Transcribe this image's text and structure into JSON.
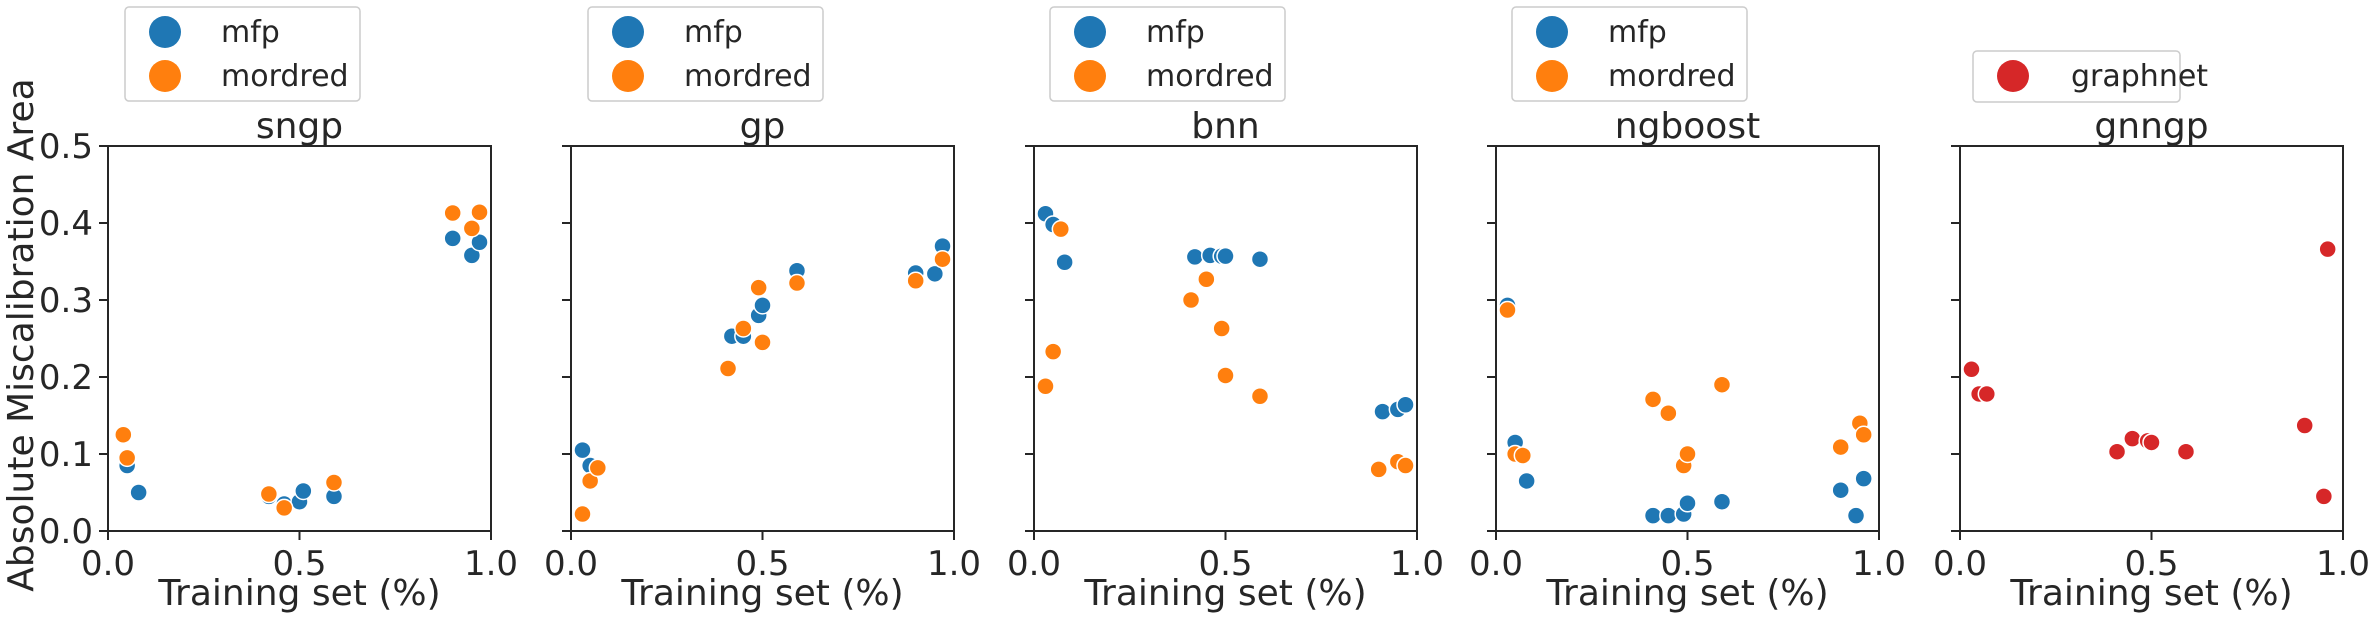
{
  "figure": {
    "ylabel": "Absolute Miscalibration Area",
    "colors": {
      "mfp": "#1f77b4",
      "mordred": "#ff7f0e",
      "graphnet": "#d62728"
    }
  },
  "chart_data": [
    {
      "type": "scatter",
      "title": "sngp",
      "xlabel": "Training set (%)",
      "ylabel": "Absolute Miscalibration Area",
      "xlim": [
        0.0,
        1.0
      ],
      "ylim": [
        0.0,
        0.5
      ],
      "xticks": [
        "0.0",
        "0.5",
        "1.0"
      ],
      "yticks": [
        "0.0",
        "0.1",
        "0.2",
        "0.3",
        "0.4",
        "0.5"
      ],
      "legend": [
        "mfp",
        "mordred"
      ],
      "series": [
        {
          "name": "mfp",
          "color": "#1f77b4",
          "points": [
            [
              0.05,
              0.085
            ],
            [
              0.08,
              0.05
            ],
            [
              0.42,
              0.045
            ],
            [
              0.46,
              0.035
            ],
            [
              0.5,
              0.038
            ],
            [
              0.51,
              0.052
            ],
            [
              0.59,
              0.045
            ],
            [
              0.9,
              0.38
            ],
            [
              0.95,
              0.358
            ],
            [
              0.97,
              0.375
            ]
          ]
        },
        {
          "name": "mordred",
          "color": "#ff7f0e",
          "points": [
            [
              0.04,
              0.125
            ],
            [
              0.05,
              0.095
            ],
            [
              0.42,
              0.048
            ],
            [
              0.46,
              0.03
            ],
            [
              0.59,
              0.063
            ],
            [
              0.9,
              0.413
            ],
            [
              0.95,
              0.393
            ],
            [
              0.97,
              0.414
            ]
          ]
        }
      ]
    },
    {
      "type": "scatter",
      "title": "gp",
      "xlabel": "Training set (%)",
      "xlim": [
        0.0,
        1.0
      ],
      "ylim": [
        0.0,
        0.5
      ],
      "xticks": [
        "0.0",
        "0.5",
        "1.0"
      ],
      "legend": [
        "mfp",
        "mordred"
      ],
      "series": [
        {
          "name": "mfp",
          "color": "#1f77b4",
          "points": [
            [
              0.03,
              0.105
            ],
            [
              0.05,
              0.085
            ],
            [
              0.42,
              0.253
            ],
            [
              0.45,
              0.253
            ],
            [
              0.49,
              0.28
            ],
            [
              0.5,
              0.293
            ],
            [
              0.59,
              0.338
            ],
            [
              0.9,
              0.335
            ],
            [
              0.95,
              0.334
            ],
            [
              0.97,
              0.37
            ]
          ]
        },
        {
          "name": "mordred",
          "color": "#ff7f0e",
          "points": [
            [
              0.03,
              0.022
            ],
            [
              0.05,
              0.065
            ],
            [
              0.07,
              0.082
            ],
            [
              0.41,
              0.211
            ],
            [
              0.45,
              0.263
            ],
            [
              0.49,
              0.316
            ],
            [
              0.5,
              0.245
            ],
            [
              0.59,
              0.322
            ],
            [
              0.9,
              0.325
            ],
            [
              0.97,
              0.353
            ]
          ]
        }
      ]
    },
    {
      "type": "scatter",
      "title": "bnn",
      "xlabel": "Training set (%)",
      "xlim": [
        0.0,
        1.0
      ],
      "ylim": [
        0.0,
        0.5
      ],
      "xticks": [
        "0.0",
        "0.5",
        "1.0"
      ],
      "legend": [
        "mfp",
        "mordred"
      ],
      "series": [
        {
          "name": "mfp",
          "color": "#1f77b4",
          "points": [
            [
              0.03,
              0.412
            ],
            [
              0.05,
              0.398
            ],
            [
              0.08,
              0.349
            ],
            [
              0.42,
              0.356
            ],
            [
              0.46,
              0.358
            ],
            [
              0.49,
              0.357
            ],
            [
              0.5,
              0.357
            ],
            [
              0.59,
              0.353
            ],
            [
              0.91,
              0.155
            ],
            [
              0.95,
              0.158
            ],
            [
              0.97,
              0.164
            ]
          ]
        },
        {
          "name": "mordred",
          "color": "#ff7f0e",
          "points": [
            [
              0.03,
              0.188
            ],
            [
              0.05,
              0.233
            ],
            [
              0.07,
              0.392
            ],
            [
              0.41,
              0.3
            ],
            [
              0.45,
              0.327
            ],
            [
              0.49,
              0.263
            ],
            [
              0.5,
              0.202
            ],
            [
              0.59,
              0.175
            ],
            [
              0.9,
              0.08
            ],
            [
              0.95,
              0.09
            ],
            [
              0.97,
              0.085
            ]
          ]
        }
      ]
    },
    {
      "type": "scatter",
      "title": "ngboost",
      "xlabel": "Training set (%)",
      "xlim": [
        0.0,
        1.0
      ],
      "ylim": [
        0.0,
        0.5
      ],
      "xticks": [
        "0.0",
        "0.5",
        "1.0"
      ],
      "legend": [
        "mfp",
        "mordred"
      ],
      "series": [
        {
          "name": "mfp",
          "color": "#1f77b4",
          "points": [
            [
              0.03,
              0.293
            ],
            [
              0.05,
              0.115
            ],
            [
              0.08,
              0.065
            ],
            [
              0.41,
              0.02
            ],
            [
              0.45,
              0.02
            ],
            [
              0.49,
              0.022
            ],
            [
              0.5,
              0.036
            ],
            [
              0.59,
              0.038
            ],
            [
              0.9,
              0.053
            ],
            [
              0.94,
              0.02
            ],
            [
              0.96,
              0.068
            ]
          ]
        },
        {
          "name": "mordred",
          "color": "#ff7f0e",
          "points": [
            [
              0.03,
              0.287
            ],
            [
              0.05,
              0.1
            ],
            [
              0.07,
              0.098
            ],
            [
              0.41,
              0.171
            ],
            [
              0.45,
              0.153
            ],
            [
              0.49,
              0.085
            ],
            [
              0.5,
              0.1
            ],
            [
              0.59,
              0.19
            ],
            [
              0.9,
              0.109
            ],
            [
              0.95,
              0.14
            ],
            [
              0.96,
              0.125
            ]
          ]
        }
      ]
    },
    {
      "type": "scatter",
      "title": "gnngp",
      "xlabel": "Training set (%)",
      "xlim": [
        0.0,
        1.0
      ],
      "ylim": [
        0.0,
        0.5
      ],
      "xticks": [
        "0.0",
        "0.5",
        "1.0"
      ],
      "legend": [
        "graphnet"
      ],
      "series": [
        {
          "name": "graphnet",
          "color": "#d62728",
          "points": [
            [
              0.03,
              0.21
            ],
            [
              0.05,
              0.178
            ],
            [
              0.07,
              0.178
            ],
            [
              0.41,
              0.103
            ],
            [
              0.45,
              0.12
            ],
            [
              0.49,
              0.117
            ],
            [
              0.5,
              0.115
            ],
            [
              0.59,
              0.103
            ],
            [
              0.9,
              0.137
            ],
            [
              0.95,
              0.045
            ],
            [
              0.96,
              0.366
            ]
          ]
        }
      ]
    }
  ]
}
